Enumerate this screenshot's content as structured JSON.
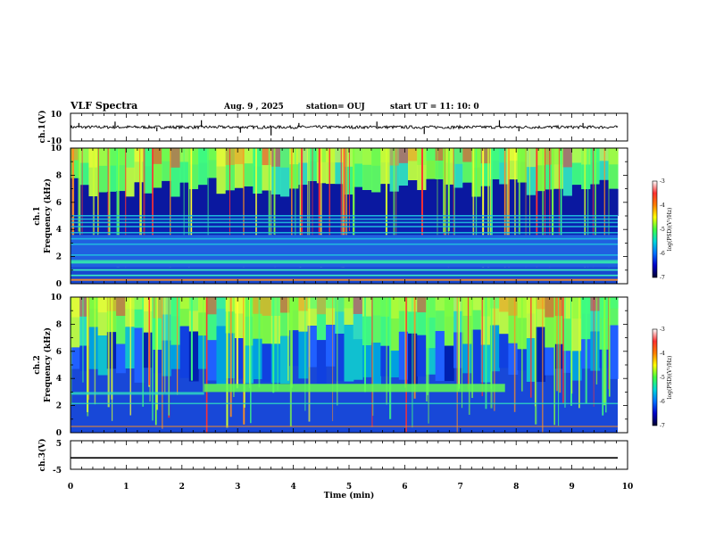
{
  "header": {
    "title": "VLF Spectra",
    "date": "Aug. 9  , 2025",
    "station": "station= OUJ",
    "start": "start  UT  =   11: 10: 0"
  },
  "colorbar": {
    "label": "log(PSD)(V²/Hz)",
    "ticks": [
      "-3",
      "-4",
      "-5",
      "-6",
      "-7"
    ],
    "colors": [
      "#ffffff",
      "#ff3030",
      "#ff8000",
      "#ffff00",
      "#40ff40",
      "#00d8d8",
      "#0070ff",
      "#0000c8",
      "#000030"
    ]
  },
  "chart_data": [
    {
      "type": "line",
      "name": "ch1-waveform",
      "ylabel": "ch.1(V)",
      "ylim": [
        -10,
        10
      ],
      "yticks": [
        "10",
        "-10"
      ],
      "baseline": 0,
      "spikes_x_min": [
        0.15,
        0.8,
        1.55,
        2.35,
        3.05,
        3.6,
        4.1,
        5.5,
        6.35,
        7.7,
        8.05,
        9.2
      ],
      "spikes_y": [
        3,
        4,
        -3,
        5,
        -4,
        -6,
        3,
        4,
        -5,
        5,
        -3,
        3
      ]
    },
    {
      "type": "heatmap",
      "name": "ch1-spectrogram",
      "ylabel": "ch.1\nFrequency (kHz)",
      "ylim": [
        0,
        10
      ],
      "yticks": [
        "0",
        "2",
        "4",
        "6",
        "8",
        "10"
      ],
      "zlim": [
        -7,
        -3
      ],
      "stripes_freq_khz": [
        0.6,
        1.0,
        1.55,
        2.1,
        2.9,
        3.3,
        3.75,
        4.2,
        4.5,
        4.75,
        5.0
      ]
    },
    {
      "type": "heatmap",
      "name": "ch2-spectrogram",
      "ylabel": "ch.2\nFrequency (kHz)",
      "ylim": [
        0,
        10
      ],
      "yticks": [
        "0",
        "2",
        "4",
        "6",
        "8",
        "10"
      ],
      "zlim": [
        -7,
        -3
      ],
      "enhanced_band": {
        "f_khz": [
          3.0,
          3.6
        ],
        "t_min": [
          2.4,
          7.8
        ]
      }
    },
    {
      "type": "line",
      "name": "ch3-waveform",
      "ylabel": "ch.3(V)",
      "ylim": [
        -5,
        5
      ],
      "yticks": [
        "5",
        "-5"
      ],
      "baseline": -1
    }
  ],
  "xaxis": {
    "label": "Time  (min)",
    "ticks": [
      "0",
      "1",
      "2",
      "3",
      "4",
      "5",
      "6",
      "7",
      "8",
      "9",
      "10"
    ],
    "range": [
      0,
      10
    ],
    "data_end": 9.83
  }
}
